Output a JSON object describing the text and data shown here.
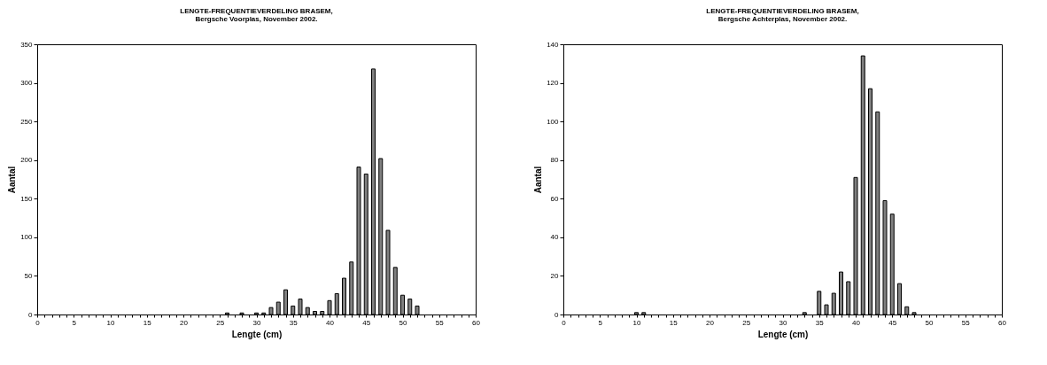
{
  "chart_data": [
    {
      "type": "bar",
      "title": "LENGTE-FREQUENTIEVERDELING BRASEM,",
      "subtitle": "Bergsche Voorplas, November 2002.",
      "xlabel": "Lengte (cm)",
      "ylabel": "Aantal",
      "x": [
        26,
        28,
        30,
        31,
        32,
        33,
        34,
        35,
        36,
        37,
        38,
        39,
        40,
        41,
        42,
        43,
        44,
        45,
        46,
        47,
        48,
        49,
        50,
        51,
        52
      ],
      "values": [
        2,
        2,
        2,
        2,
        9,
        16,
        32,
        11,
        20,
        9,
        4,
        4,
        18,
        27,
        47,
        68,
        191,
        182,
        318,
        202,
        109,
        61,
        25,
        20,
        11
      ],
      "color": "#808080",
      "xlim": [
        0,
        60
      ],
      "ylim": [
        0,
        350
      ],
      "xticks": [
        0,
        {
          "value": 1,
          "label": null
        },
        {
          "value": 2,
          "label": null
        },
        {
          "value": 3,
          "label": null
        },
        {
          "value": 4,
          "label": null
        },
        5,
        {
          "value": 6,
          "label": null
        },
        {
          "value": 7,
          "label": null
        },
        {
          "value": 8,
          "label": null
        },
        {
          "value": 9,
          "label": null
        },
        10,
        {
          "value": 11,
          "label": null
        },
        {
          "value": 12,
          "label": null
        },
        {
          "value": 13,
          "label": null
        },
        {
          "value": 14,
          "label": null
        },
        15,
        {
          "value": 16,
          "label": null
        },
        {
          "value": 17,
          "label": null
        },
        {
          "value": 18,
          "label": null
        },
        {
          "value": 19,
          "label": null
        },
        20,
        {
          "value": 21,
          "label": null
        },
        {
          "value": 22,
          "label": null
        },
        {
          "value": 23,
          "label": null
        },
        {
          "value": 24,
          "label": null
        },
        25,
        {
          "value": 26,
          "label": null
        },
        {
          "value": 27,
          "label": null
        },
        {
          "value": 28,
          "label": null
        },
        {
          "value": 29,
          "label": null
        },
        30,
        {
          "value": 31,
          "label": null
        },
        {
          "value": 32,
          "label": null
        },
        {
          "value": 33,
          "label": null
        },
        {
          "value": 34,
          "label": null
        },
        35,
        {
          "value": 36,
          "label": null
        },
        {
          "value": 37,
          "label": null
        },
        {
          "value": 38,
          "label": null
        },
        {
          "value": 39,
          "label": null
        },
        40,
        {
          "value": 41,
          "label": null
        },
        {
          "value": 42,
          "label": null
        },
        {
          "value": 43,
          "label": null
        },
        {
          "value": 44,
          "label": null
        },
        45,
        {
          "value": 46,
          "label": null
        },
        {
          "value": 47,
          "label": null
        },
        {
          "value": 48,
          "label": null
        },
        {
          "value": 49,
          "label": null
        },
        50,
        {
          "value": 51,
          "label": null
        },
        {
          "value": 52,
          "label": null
        },
        {
          "value": 53,
          "label": null
        },
        {
          "value": 54,
          "label": null
        },
        55,
        {
          "value": 56,
          "label": null
        },
        {
          "value": 57,
          "label": null
        },
        {
          "value": 58,
          "label": null
        },
        {
          "value": 59,
          "label": null
        },
        60
      ],
      "yticks": [
        0,
        50,
        100,
        150,
        200,
        250,
        300,
        350
      ],
      "grid": false
    },
    {
      "type": "bar",
      "title": "LENGTE-FREQUENTIEVERDELING BRASEM,",
      "subtitle": "Bergsche Achterplas, November 2002.",
      "xlabel": "Lengte (cm)",
      "ylabel": "Aantal",
      "x": [
        10,
        11,
        33,
        35,
        36,
        37,
        38,
        39,
        40,
        41,
        42,
        43,
        44,
        45,
        46,
        47,
        48
      ],
      "values": [
        1,
        1,
        1,
        12,
        5,
        11,
        22,
        17,
        71,
        134,
        117,
        105,
        59,
        52,
        16,
        4,
        1
      ],
      "color": "#808080",
      "xlim": [
        0,
        60
      ],
      "ylim": [
        0,
        140
      ],
      "xticks": [
        0,
        {
          "value": 1,
          "label": null
        },
        {
          "value": 2,
          "label": null
        },
        {
          "value": 3,
          "label": null
        },
        {
          "value": 4,
          "label": null
        },
        5,
        {
          "value": 6,
          "label": null
        },
        {
          "value": 7,
          "label": null
        },
        {
          "value": 8,
          "label": null
        },
        {
          "value": 9,
          "label": null
        },
        10,
        {
          "value": 11,
          "label": null
        },
        {
          "value": 12,
          "label": null
        },
        {
          "value": 13,
          "label": null
        },
        {
          "value": 14,
          "label": null
        },
        15,
        {
          "value": 16,
          "label": null
        },
        {
          "value": 17,
          "label": null
        },
        {
          "value": 18,
          "label": null
        },
        {
          "value": 19,
          "label": null
        },
        20,
        {
          "value": 21,
          "label": null
        },
        {
          "value": 22,
          "label": null
        },
        {
          "value": 23,
          "label": null
        },
        {
          "value": 24,
          "label": null
        },
        25,
        {
          "value": 26,
          "label": null
        },
        {
          "value": 27,
          "label": null
        },
        {
          "value": 28,
          "label": null
        },
        {
          "value": 29,
          "label": null
        },
        30,
        {
          "value": 31,
          "label": null
        },
        {
          "value": 32,
          "label": null
        },
        {
          "value": 33,
          "label": null
        },
        {
          "value": 34,
          "label": null
        },
        35,
        {
          "value": 36,
          "label": null
        },
        {
          "value": 37,
          "label": null
        },
        {
          "value": 38,
          "label": null
        },
        {
          "value": 39,
          "label": null
        },
        40,
        {
          "value": 41,
          "label": null
        },
        {
          "value": 42,
          "label": null
        },
        {
          "value": 43,
          "label": null
        },
        {
          "value": 44,
          "label": null
        },
        45,
        {
          "value": 46,
          "label": null
        },
        {
          "value": 47,
          "label": null
        },
        {
          "value": 48,
          "label": null
        },
        {
          "value": 49,
          "label": null
        },
        50,
        {
          "value": 51,
          "label": null
        },
        {
          "value": 52,
          "label": null
        },
        {
          "value": 53,
          "label": null
        },
        {
          "value": 54,
          "label": null
        },
        55,
        {
          "value": 56,
          "label": null
        },
        {
          "value": 57,
          "label": null
        },
        {
          "value": 58,
          "label": null
        },
        {
          "value": 59,
          "label": null
        },
        60
      ],
      "yticks": [
        0,
        20,
        40,
        60,
        80,
        100,
        120,
        140
      ],
      "grid": false
    }
  ]
}
